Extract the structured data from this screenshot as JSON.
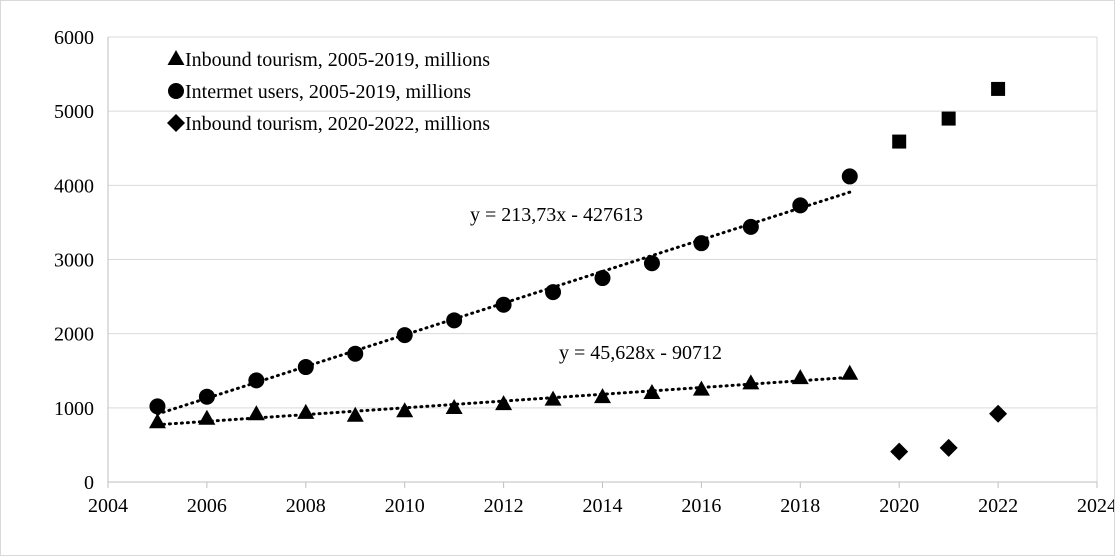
{
  "chart_data": {
    "type": "scatter",
    "xlim": [
      2004,
      2024
    ],
    "ylim": [
      0,
      6000
    ],
    "x_ticks": [
      2004,
      2006,
      2008,
      2010,
      2012,
      2014,
      2016,
      2018,
      2020,
      2022,
      2024
    ],
    "y_ticks": [
      0,
      1000,
      2000,
      3000,
      4000,
      5000,
      6000
    ],
    "x_tick_labels": [
      "2004",
      "2006",
      "2008",
      "2010",
      "2012",
      "2014",
      "2016",
      "2018",
      "2020",
      "2022",
      "2024"
    ],
    "y_tick_labels": [
      "0",
      "1000",
      "2000",
      "3000",
      "4000",
      "5000",
      "6000"
    ],
    "grid": "horizontal",
    "legend_position": "top-left",
    "series": [
      {
        "name": "Inbound tourism, 2005-2019, millions",
        "marker": "triangle",
        "x": [
          2005,
          2006,
          2007,
          2008,
          2009,
          2010,
          2011,
          2012,
          2013,
          2014,
          2015,
          2016,
          2017,
          2018,
          2019
        ],
        "y": [
          806,
          853,
          914,
          932,
          894,
          954,
          998,
          1050,
          1110,
          1145,
          1200,
          1245,
          1330,
          1400,
          1460
        ]
      },
      {
        "name": "Intermet users, 2005-2019, millions",
        "marker": "circle",
        "x": [
          2005,
          2006,
          2007,
          2008,
          2009,
          2010,
          2011,
          2012,
          2013,
          2014,
          2015,
          2016,
          2017,
          2018,
          2019
        ],
        "y": [
          1020,
          1150,
          1370,
          1550,
          1730,
          1980,
          2180,
          2390,
          2560,
          2750,
          2950,
          3220,
          3440,
          3730,
          4120
        ]
      },
      {
        "name": "Inbound tourism, 2020-2022, millions",
        "marker": "diamond",
        "x": [
          2020,
          2021,
          2022
        ],
        "y": [
          410,
          460,
          920
        ]
      },
      {
        "marker": "square",
        "x": [
          2020,
          2021,
          2022
        ],
        "y": [
          4590,
          4900,
          5300
        ]
      }
    ],
    "trendlines": [
      {
        "style": "dotted",
        "slope": 213.73,
        "intercept": -427613,
        "x_range": [
          2005,
          2019
        ],
        "label": "y = 213,73x - 427613"
      },
      {
        "style": "dotted",
        "slope": 45.628,
        "intercept": -90712,
        "x_range": [
          2005,
          2019
        ],
        "label": "y = 45,628x - 90712"
      }
    ]
  }
}
